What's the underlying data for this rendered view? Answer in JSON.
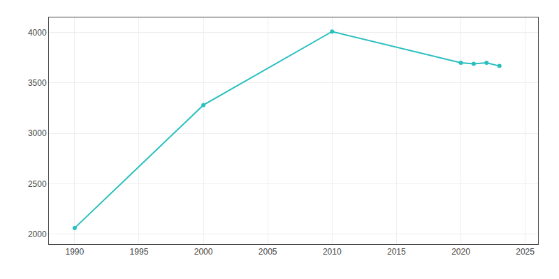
{
  "chart_data": {
    "type": "line",
    "x": [
      1990,
      2000,
      2010,
      2020,
      2021,
      2022,
      2023
    ],
    "values": [
      2060,
      3280,
      4010,
      3700,
      3690,
      3700,
      3668
    ],
    "color": "#2abfbf",
    "marker": "circle",
    "xlim": [
      1988,
      2026
    ],
    "ylim": [
      1900,
      4150
    ],
    "xticks": [
      1990,
      1995,
      2000,
      2005,
      2010,
      2015,
      2020,
      2025
    ],
    "yticks": [
      2000,
      2500,
      3000,
      3500,
      4000
    ],
    "grid": true
  }
}
